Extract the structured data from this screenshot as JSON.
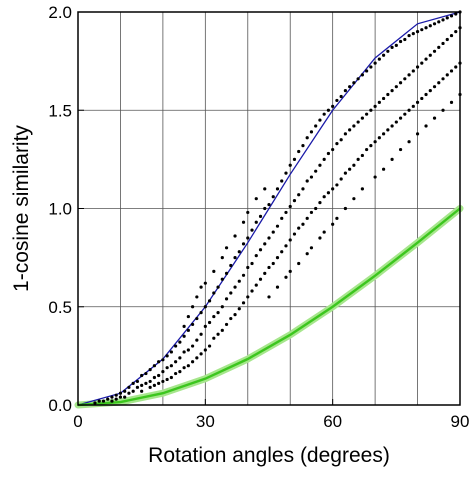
{
  "chart_data": {
    "type": "scatter",
    "title": "",
    "xlabel": "Rotation angles (degrees)",
    "ylabel": "1-cosine similarity",
    "xlim": [
      0,
      90
    ],
    "ylim": [
      0.0,
      2.0
    ],
    "x_ticks": [
      0,
      30,
      60,
      90
    ],
    "x_tick_labels": [
      "0",
      "30",
      "60",
      "90"
    ],
    "y_ticks": [
      0.0,
      0.5,
      1.0,
      1.5,
      2.0
    ],
    "y_tick_labels": [
      "0.0",
      "0.5",
      "1.0",
      "1.5",
      "2.0"
    ],
    "x_grid_lines": [
      10,
      20,
      30,
      40,
      50,
      60,
      70,
      80
    ],
    "y_grid_lines": [
      0.5,
      1.0,
      1.5
    ],
    "grid": true,
    "legend": "none",
    "colors": {
      "points": "#000000",
      "upper_curve": "#1a1aa8",
      "lower_curve": "#3cc61e",
      "lower_band": "#a6e68c",
      "grid": "#555555"
    },
    "lines": [
      {
        "role": "upper bound",
        "color": "#1a1aa8",
        "formula": "1 - cos(2*theta)",
        "points": [
          [
            0,
            0.0
          ],
          [
            10,
            0.06
          ],
          [
            20,
            0.234
          ],
          [
            30,
            0.5
          ],
          [
            40,
            0.826
          ],
          [
            45,
            1.0
          ],
          [
            50,
            1.174
          ],
          [
            60,
            1.5
          ],
          [
            70,
            1.766
          ],
          [
            80,
            1.94
          ],
          [
            90,
            2.0
          ]
        ]
      },
      {
        "role": "lower bound",
        "color": "#3cc61e",
        "formula": "1 - cos(theta)",
        "points": [
          [
            0,
            0.0
          ],
          [
            10,
            0.015
          ],
          [
            20,
            0.06
          ],
          [
            30,
            0.134
          ],
          [
            40,
            0.234
          ],
          [
            50,
            0.357
          ],
          [
            60,
            0.5
          ],
          [
            70,
            0.658
          ],
          [
            80,
            0.826
          ],
          [
            90,
            1.0
          ]
        ]
      }
    ],
    "scatter_points": [
      [
        4,
        0.01
      ],
      [
        5,
        0.02
      ],
      [
        6,
        0.02
      ],
      [
        7,
        0.03
      ],
      [
        8,
        0.04
      ],
      [
        8,
        0.02
      ],
      [
        9,
        0.05
      ],
      [
        9,
        0.03
      ],
      [
        10,
        0.06
      ],
      [
        10,
        0.04
      ],
      [
        11,
        0.07
      ],
      [
        11,
        0.04
      ],
      [
        12,
        0.09
      ],
      [
        12,
        0.06
      ],
      [
        13,
        0.11
      ],
      [
        13,
        0.07
      ],
      [
        14,
        0.12
      ],
      [
        14,
        0.09
      ],
      [
        15,
        0.15
      ],
      [
        15,
        0.1
      ],
      [
        15,
        0.07
      ],
      [
        16,
        0.16
      ],
      [
        16,
        0.11
      ],
      [
        17,
        0.18
      ],
      [
        17,
        0.12
      ],
      [
        17,
        0.09
      ],
      [
        18,
        0.2
      ],
      [
        18,
        0.14
      ],
      [
        18,
        0.1
      ],
      [
        19,
        0.22
      ],
      [
        19,
        0.15
      ],
      [
        19,
        0.11
      ],
      [
        20,
        0.23
      ],
      [
        20,
        0.17
      ],
      [
        20,
        0.12
      ],
      [
        21,
        0.25
      ],
      [
        21,
        0.19
      ],
      [
        21,
        0.13
      ],
      [
        22,
        0.27
      ],
      [
        22,
        0.2
      ],
      [
        22,
        0.14
      ],
      [
        23,
        0.3
      ],
      [
        23,
        0.22
      ],
      [
        23,
        0.16
      ],
      [
        24,
        0.32
      ],
      [
        24,
        0.24
      ],
      [
        24,
        0.17
      ],
      [
        25,
        0.35
      ],
      [
        25,
        0.27
      ],
      [
        25,
        0.19
      ],
      [
        25,
        0.4
      ],
      [
        26,
        0.38
      ],
      [
        26,
        0.28
      ],
      [
        26,
        0.2
      ],
      [
        26,
        0.45
      ],
      [
        27,
        0.41
      ],
      [
        27,
        0.3
      ],
      [
        27,
        0.22
      ],
      [
        27,
        0.5
      ],
      [
        28,
        0.44
      ],
      [
        28,
        0.33
      ],
      [
        28,
        0.24
      ],
      [
        28,
        0.55
      ],
      [
        29,
        0.47
      ],
      [
        29,
        0.36
      ],
      [
        29,
        0.26
      ],
      [
        29,
        0.6
      ],
      [
        30,
        0.5
      ],
      [
        30,
        0.4
      ],
      [
        30,
        0.28
      ],
      [
        30,
        0.62
      ],
      [
        31,
        0.53
      ],
      [
        31,
        0.42
      ],
      [
        31,
        0.3
      ],
      [
        32,
        0.57
      ],
      [
        32,
        0.45
      ],
      [
        32,
        0.34
      ],
      [
        32,
        0.68
      ],
      [
        33,
        0.6
      ],
      [
        33,
        0.47
      ],
      [
        33,
        0.36
      ],
      [
        34,
        0.64
      ],
      [
        34,
        0.5
      ],
      [
        34,
        0.38
      ],
      [
        34,
        0.75
      ],
      [
        35,
        0.67
      ],
      [
        35,
        0.54
      ],
      [
        35,
        0.41
      ],
      [
        35,
        0.8
      ],
      [
        36,
        0.71
      ],
      [
        36,
        0.57
      ],
      [
        36,
        0.44
      ],
      [
        37,
        0.75
      ],
      [
        37,
        0.6
      ],
      [
        37,
        0.46
      ],
      [
        37,
        0.86
      ],
      [
        38,
        0.78
      ],
      [
        38,
        0.63
      ],
      [
        38,
        0.49
      ],
      [
        39,
        0.82
      ],
      [
        39,
        0.66
      ],
      [
        39,
        0.52
      ],
      [
        39,
        0.93
      ],
      [
        40,
        0.85
      ],
      [
        40,
        0.7
      ],
      [
        40,
        0.55
      ],
      [
        40,
        0.98
      ],
      [
        41,
        0.89
      ],
      [
        41,
        0.72
      ],
      [
        41,
        0.58
      ],
      [
        42,
        0.93
      ],
      [
        42,
        0.76
      ],
      [
        42,
        0.61
      ],
      [
        42,
        1.05
      ],
      [
        43,
        0.96
      ],
      [
        43,
        0.79
      ],
      [
        43,
        0.64
      ],
      [
        44,
        1.0
      ],
      [
        44,
        0.82
      ],
      [
        44,
        0.67
      ],
      [
        44,
        1.1
      ],
      [
        45,
        1.02
      ],
      [
        45,
        0.85
      ],
      [
        45,
        0.7
      ],
      [
        45,
        0.55
      ],
      [
        46,
        1.06
      ],
      [
        46,
        0.88
      ],
      [
        46,
        0.72
      ],
      [
        47,
        1.1
      ],
      [
        47,
        0.91
      ],
      [
        47,
        0.75
      ],
      [
        47,
        0.6
      ],
      [
        48,
        1.14
      ],
      [
        48,
        0.95
      ],
      [
        48,
        0.78
      ],
      [
        49,
        1.18
      ],
      [
        49,
        0.98
      ],
      [
        49,
        0.81
      ],
      [
        49,
        0.65
      ],
      [
        50,
        1.22
      ],
      [
        50,
        1.01
      ],
      [
        50,
        0.84
      ],
      [
        50,
        0.68
      ],
      [
        51,
        1.25
      ],
      [
        51,
        1.04
      ],
      [
        51,
        0.87
      ],
      [
        52,
        1.29
      ],
      [
        52,
        1.07
      ],
      [
        52,
        0.9
      ],
      [
        52,
        0.72
      ],
      [
        53,
        1.32
      ],
      [
        53,
        1.1
      ],
      [
        53,
        0.92
      ],
      [
        54,
        1.36
      ],
      [
        54,
        1.14
      ],
      [
        54,
        0.95
      ],
      [
        54,
        0.77
      ],
      [
        55,
        1.39
      ],
      [
        55,
        1.16
      ],
      [
        55,
        0.98
      ],
      [
        55,
        0.8
      ],
      [
        56,
        1.42
      ],
      [
        56,
        1.19
      ],
      [
        56,
        1.0
      ],
      [
        57,
        1.45
      ],
      [
        57,
        1.22
      ],
      [
        57,
        1.03
      ],
      [
        57,
        0.85
      ],
      [
        58,
        1.48
      ],
      [
        58,
        1.25
      ],
      [
        58,
        1.06
      ],
      [
        58,
        0.88
      ],
      [
        59,
        1.5
      ],
      [
        59,
        1.28
      ],
      [
        59,
        1.08
      ],
      [
        60,
        1.52
      ],
      [
        60,
        1.3
      ],
      [
        60,
        1.1
      ],
      [
        60,
        0.92
      ],
      [
        61,
        1.55
      ],
      [
        61,
        1.33
      ],
      [
        61,
        1.12
      ],
      [
        61,
        0.95
      ],
      [
        62,
        1.57
      ],
      [
        62,
        1.35
      ],
      [
        62,
        1.15
      ],
      [
        63,
        1.6
      ],
      [
        63,
        1.38
      ],
      [
        63,
        1.18
      ],
      [
        63,
        1.0
      ],
      [
        64,
        1.62
      ],
      [
        64,
        1.4
      ],
      [
        64,
        1.2
      ],
      [
        65,
        1.64
      ],
      [
        65,
        1.42
      ],
      [
        65,
        1.22
      ],
      [
        65,
        1.05
      ],
      [
        66,
        1.66
      ],
      [
        66,
        1.44
      ],
      [
        66,
        1.25
      ],
      [
        67,
        1.68
      ],
      [
        67,
        1.46
      ],
      [
        67,
        1.27
      ],
      [
        67,
        1.1
      ],
      [
        68,
        1.7
      ],
      [
        68,
        1.48
      ],
      [
        68,
        1.3
      ],
      [
        69,
        1.72
      ],
      [
        69,
        1.5
      ],
      [
        69,
        1.32
      ],
      [
        70,
        1.74
      ],
      [
        70,
        1.52
      ],
      [
        70,
        1.34
      ],
      [
        70,
        1.16
      ],
      [
        71,
        1.76
      ],
      [
        71,
        1.54
      ],
      [
        71,
        1.36
      ],
      [
        72,
        1.78
      ],
      [
        72,
        1.56
      ],
      [
        72,
        1.38
      ],
      [
        72,
        1.2
      ],
      [
        73,
        1.8
      ],
      [
        73,
        1.58
      ],
      [
        73,
        1.4
      ],
      [
        74,
        1.82
      ],
      [
        74,
        1.6
      ],
      [
        74,
        1.42
      ],
      [
        74,
        1.25
      ],
      [
        75,
        1.83
      ],
      [
        75,
        1.62
      ],
      [
        75,
        1.44
      ],
      [
        76,
        1.85
      ],
      [
        76,
        1.64
      ],
      [
        76,
        1.46
      ],
      [
        76,
        1.3
      ],
      [
        77,
        1.86
      ],
      [
        77,
        1.66
      ],
      [
        77,
        1.48
      ],
      [
        78,
        1.88
      ],
      [
        78,
        1.68
      ],
      [
        78,
        1.5
      ],
      [
        78,
        1.34
      ],
      [
        79,
        1.89
      ],
      [
        79,
        1.7
      ],
      [
        79,
        1.52
      ],
      [
        80,
        1.9
      ],
      [
        80,
        1.72
      ],
      [
        80,
        1.54
      ],
      [
        80,
        1.38
      ],
      [
        81,
        1.91
      ],
      [
        81,
        1.74
      ],
      [
        81,
        1.56
      ],
      [
        82,
        1.92
      ],
      [
        82,
        1.76
      ],
      [
        82,
        1.58
      ],
      [
        82,
        1.42
      ],
      [
        83,
        1.93
      ],
      [
        83,
        1.78
      ],
      [
        83,
        1.6
      ],
      [
        84,
        1.94
      ],
      [
        84,
        1.8
      ],
      [
        84,
        1.62
      ],
      [
        84,
        1.46
      ],
      [
        85,
        1.95
      ],
      [
        85,
        1.82
      ],
      [
        85,
        1.64
      ],
      [
        86,
        1.96
      ],
      [
        86,
        1.84
      ],
      [
        86,
        1.66
      ],
      [
        86,
        1.5
      ],
      [
        87,
        1.97
      ],
      [
        87,
        1.86
      ],
      [
        87,
        1.68
      ],
      [
        88,
        1.98
      ],
      [
        88,
        1.88
      ],
      [
        88,
        1.7
      ],
      [
        88,
        1.54
      ],
      [
        89,
        1.99
      ],
      [
        89,
        1.9
      ],
      [
        89,
        1.72
      ],
      [
        90,
        2.0
      ],
      [
        90,
        1.92
      ],
      [
        90,
        1.74
      ],
      [
        90,
        1.58
      ]
    ]
  }
}
